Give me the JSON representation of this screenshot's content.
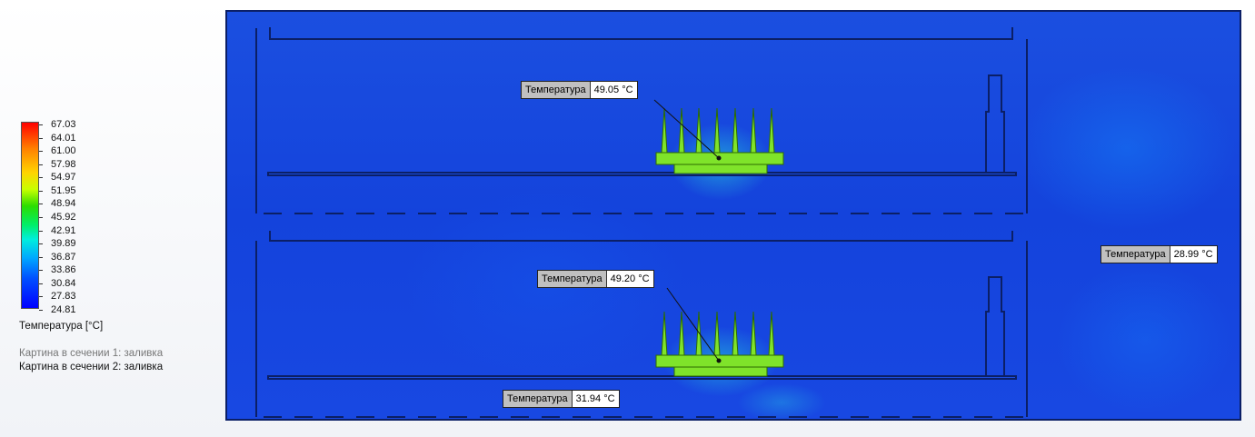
{
  "legend": {
    "ticks": [
      "67.03",
      "64.01",
      "61.00",
      "57.98",
      "54.97",
      "51.95",
      "48.94",
      "45.92",
      "42.91",
      "39.89",
      "36.87",
      "33.86",
      "30.84",
      "27.83",
      "24.81"
    ],
    "title": "Температура [°C]",
    "note1": "Картина в сечении 1: заливка",
    "note2": "Картина в сечении 2: заливка",
    "colors": {
      "max": "#ff0000",
      "min": "#0000ff"
    }
  },
  "probes": [
    {
      "label": "Температура",
      "value": "49.05 °C"
    },
    {
      "label": "Температура",
      "value": "49.20 °C"
    },
    {
      "label": "Температура",
      "value": "28.99 °C"
    },
    {
      "label": "Температура",
      "value": "31.94 °C"
    }
  ],
  "colors": {
    "field": "#1848e2",
    "heatsink": "#7fe32a",
    "outline": "#0b1f66"
  }
}
